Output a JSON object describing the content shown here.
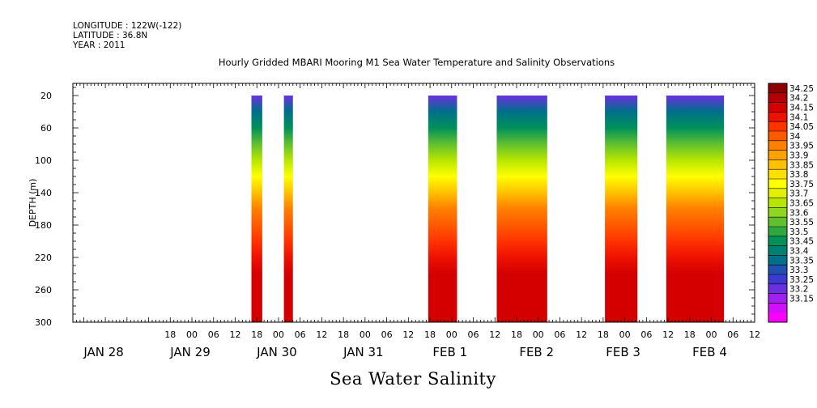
{
  "meta": {
    "longitude": "LONGITUDE : 122W(-122)",
    "latitude": "LATITUDE : 36.8N",
    "year": "YEAR : 2011"
  },
  "chart_data": {
    "type": "heatmap",
    "title": "Hourly Gridded MBARI Mooring M1 Sea Water Temperature and Salinity Observations",
    "xlabel": "Sea Water Salinity",
    "ylabel": "DEPTH (m)",
    "x_unit": "hours since JAN 28 2011 00:00",
    "xlim": [
      -9,
      180
    ],
    "ylim": [
      300,
      5
    ],
    "y_inverted": true,
    "y_ticks": [
      20,
      60,
      100,
      140,
      180,
      220,
      260,
      300
    ],
    "x_hour_ticks": [
      {
        "h": 18,
        "label": "18"
      },
      {
        "h": 24,
        "label": "00"
      },
      {
        "h": 30,
        "label": "06"
      },
      {
        "h": 36,
        "label": "12"
      },
      {
        "h": 42,
        "label": "18"
      },
      {
        "h": 48,
        "label": "00"
      },
      {
        "h": 54,
        "label": "06"
      },
      {
        "h": 60,
        "label": "12"
      },
      {
        "h": 66,
        "label": "18"
      },
      {
        "h": 72,
        "label": "00"
      },
      {
        "h": 78,
        "label": "06"
      },
      {
        "h": 84,
        "label": "12"
      },
      {
        "h": 90,
        "label": "18"
      },
      {
        "h": 96,
        "label": "00"
      },
      {
        "h": 102,
        "label": "06"
      },
      {
        "h": 108,
        "label": "12"
      },
      {
        "h": 114,
        "label": "18"
      },
      {
        "h": 120,
        "label": "00"
      },
      {
        "h": 126,
        "label": "06"
      },
      {
        "h": 132,
        "label": "12"
      },
      {
        "h": 138,
        "label": "18"
      },
      {
        "h": 144,
        "label": "00"
      },
      {
        "h": 150,
        "label": "06"
      },
      {
        "h": 156,
        "label": "12"
      },
      {
        "h": 162,
        "label": "18"
      },
      {
        "h": 168,
        "label": "00"
      },
      {
        "h": 174,
        "label": "06"
      },
      {
        "h": 180,
        "label": "12"
      }
    ],
    "x_date_labels": [
      {
        "h": 0,
        "label": "JAN 28"
      },
      {
        "h": 24,
        "label": "JAN 29"
      },
      {
        "h": 48,
        "label": "JAN 30"
      },
      {
        "h": 72,
        "label": "JAN 31"
      },
      {
        "h": 96,
        "label": "FEB  1"
      },
      {
        "h": 120,
        "label": "FEB  2"
      },
      {
        "h": 144,
        "label": "FEB  3"
      },
      {
        "h": 168,
        "label": "FEB  4"
      }
    ],
    "data_blocks": [
      {
        "start_h": 40.5,
        "end_h": 43.5
      },
      {
        "start_h": 49.5,
        "end_h": 52
      },
      {
        "start_h": 89.5,
        "end_h": 97.5
      },
      {
        "start_h": 108.5,
        "end_h": 122.5
      },
      {
        "start_h": 138.5,
        "end_h": 147.5
      },
      {
        "start_h": 155.5,
        "end_h": 171.5
      }
    ],
    "depth_profile": [
      {
        "depth": 20,
        "salinity": 33.22
      },
      {
        "depth": 40,
        "salinity": 33.35
      },
      {
        "depth": 60,
        "salinity": 33.47
      },
      {
        "depth": 80,
        "salinity": 33.58
      },
      {
        "depth": 100,
        "salinity": 33.67
      },
      {
        "depth": 120,
        "salinity": 33.77
      },
      {
        "depth": 140,
        "salinity": 33.87
      },
      {
        "depth": 160,
        "salinity": 33.95
      },
      {
        "depth": 180,
        "salinity": 34.01
      },
      {
        "depth": 200,
        "salinity": 34.06
      },
      {
        "depth": 220,
        "salinity": 34.11
      },
      {
        "depth": 240,
        "salinity": 34.16
      },
      {
        "depth": 260,
        "salinity": 34.19
      },
      {
        "depth": 280,
        "salinity": 34.17
      },
      {
        "depth": 300,
        "salinity": 34.15
      }
    ],
    "colorbar": {
      "levels": [
        "34.25",
        "34.2",
        "34.15",
        "34.1",
        "34.05",
        "34",
        "33.95",
        "33.9",
        "33.85",
        "33.8",
        "33.75",
        "33.7",
        "33.65",
        "33.6",
        "33.55",
        "33.5",
        "33.45",
        "33.4",
        "33.35",
        "33.3",
        "33.25",
        "33.2",
        "33.15"
      ],
      "colors": [
        "#8b0000",
        "#b20000",
        "#d40000",
        "#ee1100",
        "#ff3300",
        "#ff5a00",
        "#ff7f00",
        "#ffa200",
        "#ffc000",
        "#ffe000",
        "#ffff00",
        "#e0f000",
        "#b8e600",
        "#8fd620",
        "#60c030",
        "#30a840",
        "#00905a",
        "#008070",
        "#00708a",
        "#2050b0",
        "#3a3ad0",
        "#6a30e0",
        "#a020f0",
        "#d010f8",
        "#ff00ff"
      ]
    }
  }
}
